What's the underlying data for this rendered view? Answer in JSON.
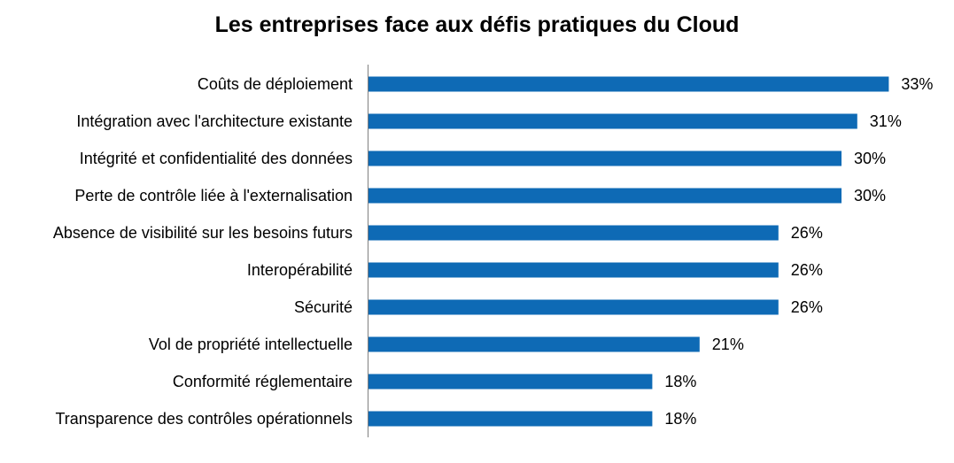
{
  "chart_data": {
    "type": "bar",
    "orientation": "horizontal",
    "title": "Les entreprises face aux défis pratiques du Cloud",
    "categories": [
      "Coûts de déploiement",
      "Intégration avec l'architecture existante",
      "Intégrité et confidentialité des données",
      "Perte de contrôle liée à l'externalisation",
      "Absence de visibilité sur les besoins futurs",
      "Interopérabilité",
      "Sécurité",
      "Vol de propriété intellectuelle",
      "Conformité réglementaire",
      "Transparence des contrôles opérationnels"
    ],
    "values": [
      33,
      31,
      30,
      30,
      26,
      26,
      26,
      21,
      18,
      18
    ],
    "value_labels": [
      "33%",
      "31%",
      "30%",
      "30%",
      "26%",
      "26%",
      "26%",
      "21%",
      "18%",
      "18%"
    ],
    "xlabel": "",
    "ylabel": "",
    "xlim": [
      0,
      35
    ],
    "grid": false,
    "legend": "none",
    "bar_color": "#0E6AB5",
    "axis_color": "#808080"
  }
}
